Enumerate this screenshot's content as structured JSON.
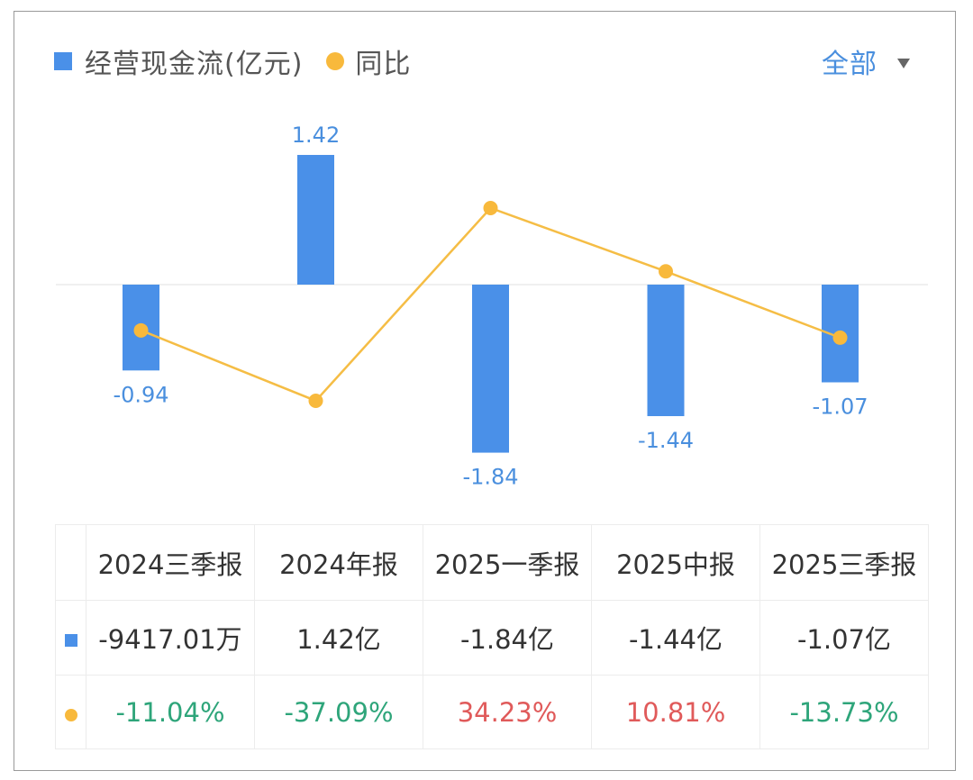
{
  "legend": {
    "bar_label": "经营现金流(亿元)",
    "line_label": "同比",
    "bar_color": "#4a90e8",
    "line_color": "#f8b93c"
  },
  "filter": {
    "label": "全部",
    "icon": "caret-down-icon"
  },
  "chart_data": {
    "type": "bar+line",
    "title": "",
    "categories": [
      "2024三季报",
      "2024年报",
      "2025一季报",
      "2025中报",
      "2025三季报"
    ],
    "series": [
      {
        "name": "经营现金流(亿元)",
        "type": "bar",
        "values": [
          -0.94,
          1.42,
          -1.84,
          -1.44,
          -1.07
        ],
        "labels": [
          "-0.94",
          "1.42",
          "-1.84",
          "-1.44",
          "-1.07"
        ],
        "color": "#4a90e8"
      },
      {
        "name": "同比",
        "type": "line",
        "unit": "%",
        "values": [
          -11.04,
          -37.09,
          34.23,
          10.81,
          -13.73
        ],
        "color": "#f8b93c"
      }
    ],
    "xlabel": "",
    "ylabel": "",
    "grid": false,
    "legend_position": "top-left",
    "zero_line": true
  },
  "table": {
    "headers": [
      "2024三季报",
      "2024年报",
      "2025一季报",
      "2025中报",
      "2025三季报"
    ],
    "rows": [
      {
        "icon": "blue-square-icon",
        "cells": [
          "-9417.01万",
          "1.42亿",
          "-1.84亿",
          "-1.44亿",
          "-1.07亿"
        ]
      },
      {
        "icon": "yellow-dot-icon",
        "cells": [
          "-11.04%",
          "-37.09%",
          "34.23%",
          "10.81%",
          "-13.73%"
        ],
        "signs": [
          "neg",
          "neg",
          "pos",
          "pos",
          "neg"
        ]
      }
    ],
    "positive_color": "#e05a5a",
    "negative_color": "#2ea57a"
  }
}
